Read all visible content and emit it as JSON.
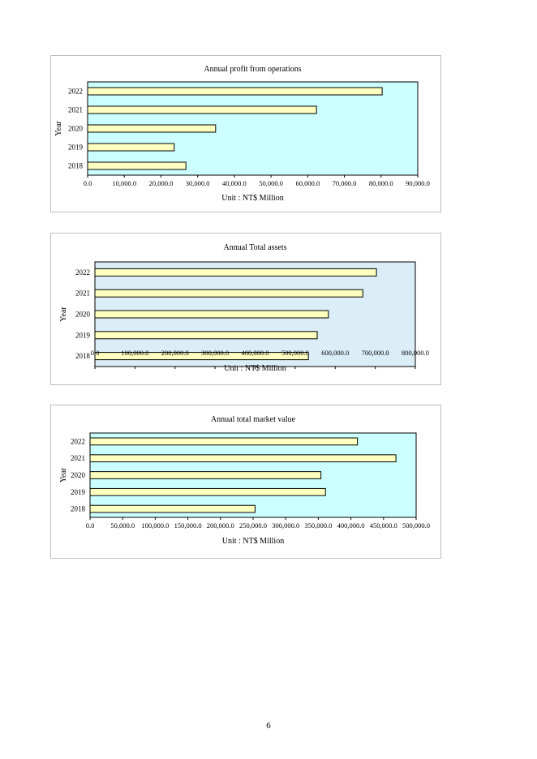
{
  "page_number": "6",
  "chart_data": [
    {
      "type": "bar",
      "orientation": "horizontal",
      "title": "Annual profit from operations",
      "xlabel": "Unit : NT$ Million",
      "ylabel": "Year",
      "categories": [
        "2022",
        "2021",
        "2020",
        "2019",
        "2018"
      ],
      "values": [
        80300,
        62400,
        34900,
        23600,
        26800
      ],
      "xlim": [
        0,
        90000
      ],
      "xticks": [
        0,
        10000,
        20000,
        30000,
        40000,
        50000,
        60000,
        70000,
        80000,
        90000
      ],
      "tick_labels": [
        "0.0",
        "10,000.0",
        "20,000.0",
        "30,000.0",
        "40,000.0",
        "50,000.0",
        "60,000.0",
        "70,000.0",
        "80,000.0",
        "90,000.0"
      ],
      "grid": false,
      "legend": "none",
      "colors": {
        "bar": "#ffffc0",
        "bar_edge": "#000000",
        "plot_bg": "#ccffff"
      }
    },
    {
      "type": "bar",
      "orientation": "horizontal",
      "title": "Annual Total assets",
      "xlabel": "Unit : NT$ Million",
      "ylabel": "Year",
      "categories": [
        "2022",
        "2021",
        "2020",
        "2019",
        "2018"
      ],
      "values": [
        703000,
        669000,
        583000,
        555000,
        533000
      ],
      "xlim": [
        0,
        800000
      ],
      "xticks": [
        0,
        100000,
        200000,
        300000,
        400000,
        500000,
        600000,
        700000,
        800000
      ],
      "tick_labels": [
        "0.0",
        "100,000.0",
        "200,000.0",
        "300,000.0",
        "400,000.0",
        "500,000.0",
        "600,000.0",
        "700,000.0",
        "800,000.0"
      ],
      "grid": false,
      "legend": "none",
      "colors": {
        "bar": "#ffffc0",
        "bar_edge": "#000000",
        "plot_bg": "#dbeef8"
      }
    },
    {
      "type": "bar",
      "orientation": "horizontal",
      "title": "Annual total market value",
      "xlabel": "Unit : NT$ Million",
      "ylabel": "Year",
      "categories": [
        "2022",
        "2021",
        "2020",
        "2019",
        "2018"
      ],
      "values": [
        410000,
        469000,
        354000,
        361000,
        253000
      ],
      "xlim": [
        0,
        500000
      ],
      "xticks": [
        0,
        50000,
        100000,
        150000,
        200000,
        250000,
        300000,
        350000,
        400000,
        450000,
        500000
      ],
      "tick_labels": [
        "0.0",
        "50,000.0",
        "100,000.0",
        "150,000.0",
        "200,000.0",
        "250,000.0",
        "300,000.0",
        "350,000.0",
        "400,000.0",
        "450,000.0",
        "500,000.0"
      ],
      "grid": false,
      "legend": "none",
      "colors": {
        "bar": "#ffffc0",
        "bar_edge": "#000000",
        "plot_bg": "#ccffff"
      }
    }
  ]
}
